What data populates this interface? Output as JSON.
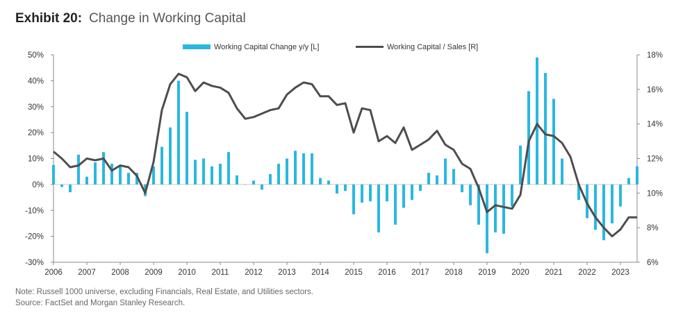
{
  "title": {
    "label": "Exhibit 20:",
    "text": "Change in Working Capital"
  },
  "notes": {
    "note": "Note: Russell 1000 universe, excluding Financials, Real Estate, and Utilities sectors.",
    "source": "Source: FactSet and Morgan Stanley Research."
  },
  "chart_data": {
    "type": "bar+line",
    "legend": [
      "Working Capital Change y/y [L]",
      "Working Capital / Sales [R]"
    ],
    "legend_position": "top-center",
    "colors": {
      "bars": "#29b8e0",
      "line": "#4d4d4d"
    },
    "left_axis": {
      "ticks": [
        "-30%",
        "-20%",
        "-10%",
        "0%",
        "10%",
        "20%",
        "30%",
        "40%",
        "50%"
      ],
      "range": [
        -30,
        50
      ]
    },
    "right_axis": {
      "ticks": [
        "6%",
        "8%",
        "10%",
        "12%",
        "14%",
        "16%",
        "18%"
      ],
      "range": [
        6,
        18
      ]
    },
    "x_ticks": [
      "2006",
      "2007",
      "2008",
      "2009",
      "2010",
      "2011",
      "2012",
      "2013",
      "2014",
      "2015",
      "2016",
      "2017",
      "2018",
      "2019",
      "2020",
      "2021",
      "2022",
      "2023"
    ],
    "x_range": [
      2006,
      2023.5
    ],
    "grid": false,
    "bars": [
      {
        "x": 2006.0,
        "y": 7.5
      },
      {
        "x": 2006.25,
        "y": -1
      },
      {
        "x": 2006.5,
        "y": -3
      },
      {
        "x": 2006.75,
        "y": 11.5
      },
      {
        "x": 2007.0,
        "y": 3
      },
      {
        "x": 2007.25,
        "y": 8.5
      },
      {
        "x": 2007.5,
        "y": 12.5
      },
      {
        "x": 2007.75,
        "y": 8
      },
      {
        "x": 2008.0,
        "y": 7
      },
      {
        "x": 2008.25,
        "y": 4.5
      },
      {
        "x": 2008.5,
        "y": 4.5
      },
      {
        "x": 2008.75,
        "y": -4.5
      },
      {
        "x": 2009.0,
        "y": 7
      },
      {
        "x": 2009.25,
        "y": 14.5
      },
      {
        "x": 2009.5,
        "y": 22
      },
      {
        "x": 2009.75,
        "y": 40
      },
      {
        "x": 2010.0,
        "y": 28
      },
      {
        "x": 2010.25,
        "y": 9.5
      },
      {
        "x": 2010.5,
        "y": 10
      },
      {
        "x": 2010.75,
        "y": 7
      },
      {
        "x": 2011.0,
        "y": 8
      },
      {
        "x": 2011.25,
        "y": 12.5
      },
      {
        "x": 2011.5,
        "y": 3.5
      },
      {
        "x": 2011.75,
        "y": 0
      },
      {
        "x": 2012.0,
        "y": 1.5
      },
      {
        "x": 2012.25,
        "y": -2
      },
      {
        "x": 2012.5,
        "y": 4
      },
      {
        "x": 2012.75,
        "y": 8
      },
      {
        "x": 2013.0,
        "y": 10
      },
      {
        "x": 2013.25,
        "y": 13
      },
      {
        "x": 2013.5,
        "y": 12
      },
      {
        "x": 2013.75,
        "y": 12
      },
      {
        "x": 2014.0,
        "y": 2.5
      },
      {
        "x": 2014.25,
        "y": 1.5
      },
      {
        "x": 2014.5,
        "y": -3.5
      },
      {
        "x": 2014.75,
        "y": -2.5
      },
      {
        "x": 2015.0,
        "y": -11.5
      },
      {
        "x": 2015.25,
        "y": -7
      },
      {
        "x": 2015.5,
        "y": -6.5
      },
      {
        "x": 2015.75,
        "y": -18.5
      },
      {
        "x": 2016.0,
        "y": -6.5
      },
      {
        "x": 2016.25,
        "y": -15.5
      },
      {
        "x": 2016.5,
        "y": -9
      },
      {
        "x": 2016.75,
        "y": -6
      },
      {
        "x": 2017.0,
        "y": -2.5
      },
      {
        "x": 2017.25,
        "y": 4.5
      },
      {
        "x": 2017.5,
        "y": 3.5
      },
      {
        "x": 2017.75,
        "y": 10
      },
      {
        "x": 2018.0,
        "y": 6
      },
      {
        "x": 2018.25,
        "y": -3
      },
      {
        "x": 2018.5,
        "y": -8
      },
      {
        "x": 2018.75,
        "y": -15.5
      },
      {
        "x": 2019.0,
        "y": -26.5
      },
      {
        "x": 2019.25,
        "y": -18.5
      },
      {
        "x": 2019.5,
        "y": -19
      },
      {
        "x": 2019.75,
        "y": -8.5
      },
      {
        "x": 2020.0,
        "y": 15
      },
      {
        "x": 2020.25,
        "y": 36
      },
      {
        "x": 2020.5,
        "y": 49
      },
      {
        "x": 2020.75,
        "y": 43
      },
      {
        "x": 2021.0,
        "y": 33
      },
      {
        "x": 2021.25,
        "y": 10
      },
      {
        "x": 2021.5,
        "y": 0
      },
      {
        "x": 2021.75,
        "y": -6
      },
      {
        "x": 2022.0,
        "y": -13
      },
      {
        "x": 2022.25,
        "y": -17.5
      },
      {
        "x": 2022.5,
        "y": -21.5
      },
      {
        "x": 2022.75,
        "y": -15
      },
      {
        "x": 2023.0,
        "y": -8.5
      },
      {
        "x": 2023.25,
        "y": 2.5
      },
      {
        "x": 2023.5,
        "y": 7
      }
    ],
    "line": [
      {
        "x": 2006.0,
        "y": 12.4
      },
      {
        "x": 2006.25,
        "y": 12.0
      },
      {
        "x": 2006.5,
        "y": 11.5
      },
      {
        "x": 2006.75,
        "y": 11.6
      },
      {
        "x": 2007.0,
        "y": 12.0
      },
      {
        "x": 2007.25,
        "y": 11.9
      },
      {
        "x": 2007.5,
        "y": 12.0
      },
      {
        "x": 2007.75,
        "y": 11.3
      },
      {
        "x": 2008.0,
        "y": 11.6
      },
      {
        "x": 2008.25,
        "y": 11.5
      },
      {
        "x": 2008.5,
        "y": 11.0
      },
      {
        "x": 2008.75,
        "y": 10.0
      },
      {
        "x": 2009.0,
        "y": 11.8
      },
      {
        "x": 2009.25,
        "y": 14.8
      },
      {
        "x": 2009.5,
        "y": 16.3
      },
      {
        "x": 2009.75,
        "y": 16.9
      },
      {
        "x": 2010.0,
        "y": 16.7
      },
      {
        "x": 2010.25,
        "y": 15.9
      },
      {
        "x": 2010.5,
        "y": 16.4
      },
      {
        "x": 2010.75,
        "y": 16.2
      },
      {
        "x": 2011.0,
        "y": 16.1
      },
      {
        "x": 2011.25,
        "y": 15.8
      },
      {
        "x": 2011.5,
        "y": 14.9
      },
      {
        "x": 2011.75,
        "y": 14.3
      },
      {
        "x": 2012.0,
        "y": 14.4
      },
      {
        "x": 2012.25,
        "y": 14.6
      },
      {
        "x": 2012.5,
        "y": 14.8
      },
      {
        "x": 2012.75,
        "y": 14.9
      },
      {
        "x": 2013.0,
        "y": 15.7
      },
      {
        "x": 2013.25,
        "y": 16.1
      },
      {
        "x": 2013.5,
        "y": 16.4
      },
      {
        "x": 2013.75,
        "y": 16.3
      },
      {
        "x": 2014.0,
        "y": 15.6
      },
      {
        "x": 2014.25,
        "y": 15.6
      },
      {
        "x": 2014.5,
        "y": 15.1
      },
      {
        "x": 2014.75,
        "y": 15.2
      },
      {
        "x": 2015.0,
        "y": 13.5
      },
      {
        "x": 2015.25,
        "y": 14.9
      },
      {
        "x": 2015.5,
        "y": 14.8
      },
      {
        "x": 2015.75,
        "y": 13.0
      },
      {
        "x": 2016.0,
        "y": 13.3
      },
      {
        "x": 2016.25,
        "y": 12.9
      },
      {
        "x": 2016.5,
        "y": 13.8
      },
      {
        "x": 2016.75,
        "y": 12.5
      },
      {
        "x": 2017.0,
        "y": 12.8
      },
      {
        "x": 2017.25,
        "y": 13.1
      },
      {
        "x": 2017.5,
        "y": 13.6
      },
      {
        "x": 2017.75,
        "y": 12.8
      },
      {
        "x": 2018.0,
        "y": 12.5
      },
      {
        "x": 2018.25,
        "y": 11.7
      },
      {
        "x": 2018.5,
        "y": 11.4
      },
      {
        "x": 2018.75,
        "y": 10.3
      },
      {
        "x": 2019.0,
        "y": 8.9
      },
      {
        "x": 2019.25,
        "y": 9.3
      },
      {
        "x": 2019.5,
        "y": 9.2
      },
      {
        "x": 2019.75,
        "y": 9.1
      },
      {
        "x": 2020.0,
        "y": 9.9
      },
      {
        "x": 2020.25,
        "y": 13.0
      },
      {
        "x": 2020.5,
        "y": 14.0
      },
      {
        "x": 2020.75,
        "y": 13.4
      },
      {
        "x": 2021.0,
        "y": 13.3
      },
      {
        "x": 2021.25,
        "y": 12.9
      },
      {
        "x": 2021.5,
        "y": 12.1
      },
      {
        "x": 2021.75,
        "y": 10.5
      },
      {
        "x": 2022.0,
        "y": 9.4
      },
      {
        "x": 2022.25,
        "y": 8.6
      },
      {
        "x": 2022.5,
        "y": 8.0
      },
      {
        "x": 2022.75,
        "y": 7.5
      },
      {
        "x": 2023.0,
        "y": 7.9
      },
      {
        "x": 2023.25,
        "y": 8.6
      },
      {
        "x": 2023.5,
        "y": 8.6
      }
    ]
  }
}
